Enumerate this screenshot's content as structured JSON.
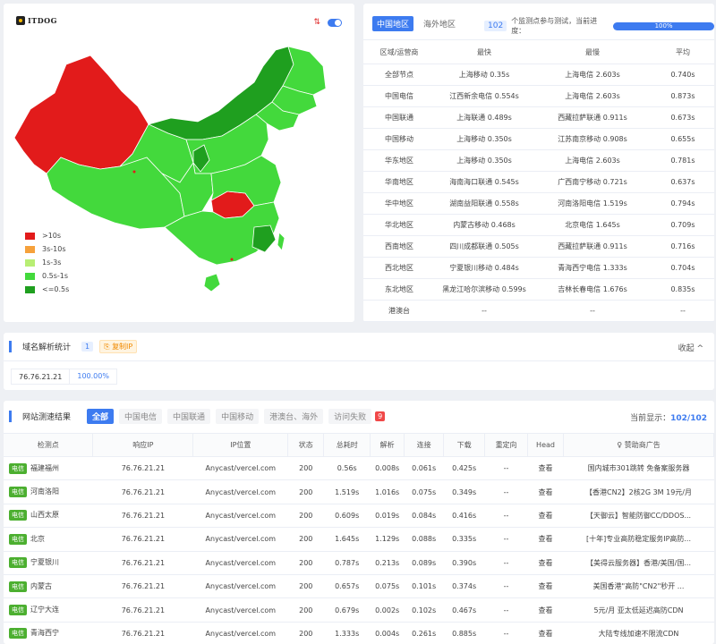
{
  "brand": {
    "logo_text": "ITDOG"
  },
  "map_legend": [
    {
      "label": ">10s",
      "color": "#e21b1b"
    },
    {
      "label": "3s-10s",
      "color": "#f6a13b"
    },
    {
      "label": "1s-3s",
      "color": "#b8ee74"
    },
    {
      "label": "0.5s-1s",
      "color": "#43d93c"
    },
    {
      "label": "<=0.5s",
      "color": "#1f9f1f"
    }
  ],
  "region_tabs": [
    {
      "label": "中国地区",
      "active": true
    },
    {
      "label": "海外地区",
      "active": false
    }
  ],
  "progress": {
    "count": "102",
    "text": "个监测点参与测试，当前进度：",
    "percent_label": "100%",
    "fraction": 1.0
  },
  "stats_table": {
    "headers": [
      "区域/运营商",
      "最快",
      "最慢",
      "平均"
    ],
    "rows": [
      [
        "全部节点",
        "上海移动 0.35s",
        "上海电信 2.603s",
        "0.740s"
      ],
      [
        "中国电信",
        "江西新余电信 0.554s",
        "上海电信 2.603s",
        "0.873s"
      ],
      [
        "中国联通",
        "上海联通 0.489s",
        "西藏拉萨联通 0.911s",
        "0.673s"
      ],
      [
        "中国移动",
        "上海移动 0.350s",
        "江苏南京移动 0.908s",
        "0.655s"
      ],
      [
        "华东地区",
        "上海移动 0.350s",
        "上海电信 2.603s",
        "0.781s"
      ],
      [
        "华南地区",
        "海南海口联通 0.545s",
        "广西南宁移动 0.721s",
        "0.637s"
      ],
      [
        "华中地区",
        "湖南益阳联通 0.558s",
        "河南洛阳电信 1.519s",
        "0.794s"
      ],
      [
        "华北地区",
        "内蒙古移动 0.468s",
        "北京电信 1.645s",
        "0.709s"
      ],
      [
        "西南地区",
        "四川成都联通 0.505s",
        "西藏拉萨联通 0.911s",
        "0.716s"
      ],
      [
        "西北地区",
        "宁夏银川移动 0.484s",
        "青海西宁电信 1.333s",
        "0.704s"
      ],
      [
        "东北地区",
        "黑龙江哈尔滨移动 0.599s",
        "吉林长春电信 1.676s",
        "0.835s"
      ],
      [
        "港澳台",
        "--",
        "--",
        "--"
      ]
    ]
  },
  "dns": {
    "title": "域名解析统计",
    "count": "1",
    "badge": "复制IP",
    "collapse_label": "收起 ^",
    "ip": "76.76.21.21",
    "percent": "100.00%"
  },
  "results": {
    "title": "网站测速结果",
    "filter_tabs": [
      {
        "label": "全部",
        "active": true
      },
      {
        "label": "中国电信",
        "active": false
      },
      {
        "label": "中国联通",
        "active": false
      },
      {
        "label": "中国移动",
        "active": false
      },
      {
        "label": "港澳台、海外",
        "active": false
      },
      {
        "label": "访问失败",
        "active": false
      }
    ],
    "fail_count": "9",
    "current_label": "当前显示：",
    "current_value": "102/102",
    "headers": [
      "检测点",
      "响应IP",
      "IP位置",
      "状态",
      "总耗时",
      "解析",
      "连接",
      "下载",
      "重定向",
      "Head",
      "赞助商广告"
    ],
    "rows": [
      {
        "isp": "电信",
        "node": "福建福州",
        "ip": "76.76.21.21",
        "loc": "Anycast/vercel.com",
        "status": "200",
        "total": "0.56s",
        "dns": "0.008s",
        "conn": "0.061s",
        "down": "0.425s",
        "redirect": "--",
        "head": "查看",
        "ad": "国内城市301跳转 免备案服务器",
        "tier": "ok"
      },
      {
        "isp": "电信",
        "node": "河南洛阳",
        "ip": "76.76.21.21",
        "loc": "Anycast/vercel.com",
        "status": "200",
        "total": "1.519s",
        "dns": "1.016s",
        "conn": "0.075s",
        "down": "0.349s",
        "redirect": "--",
        "head": "查看",
        "ad": "【香港CN2】2核2G 3M 19元/月",
        "tier": "mid"
      },
      {
        "isp": "电信",
        "node": "山西太原",
        "ip": "76.76.21.21",
        "loc": "Anycast/vercel.com",
        "status": "200",
        "total": "0.609s",
        "dns": "0.019s",
        "conn": "0.084s",
        "down": "0.416s",
        "redirect": "--",
        "head": "查看",
        "ad": "【天御云】智能防御CC/DDOS...",
        "tier": "ok"
      },
      {
        "isp": "电信",
        "node": "北京",
        "ip": "76.76.21.21",
        "loc": "Anycast/vercel.com",
        "status": "200",
        "total": "1.645s",
        "dns": "1.129s",
        "conn": "0.088s",
        "down": "0.335s",
        "redirect": "--",
        "head": "查看",
        "ad": "[十年]专业高防稳定服务IP高防...",
        "tier": "mid"
      },
      {
        "isp": "电信",
        "node": "宁夏银川",
        "ip": "76.76.21.21",
        "loc": "Anycast/vercel.com",
        "status": "200",
        "total": "0.787s",
        "dns": "0.213s",
        "conn": "0.089s",
        "down": "0.390s",
        "redirect": "--",
        "head": "查看",
        "ad": "【美得云服务器】香港/美国/国...",
        "tier": "ok"
      },
      {
        "isp": "电信",
        "node": "内蒙古",
        "ip": "76.76.21.21",
        "loc": "Anycast/vercel.com",
        "status": "200",
        "total": "0.657s",
        "dns": "0.075s",
        "conn": "0.101s",
        "down": "0.374s",
        "redirect": "--",
        "head": "查看",
        "ad": "美国香港\"高防\"CN2\"秒开 ...",
        "tier": "ok"
      },
      {
        "isp": "电信",
        "node": "辽宁大连",
        "ip": "76.76.21.21",
        "loc": "Anycast/vercel.com",
        "status": "200",
        "total": "0.679s",
        "dns": "0.002s",
        "conn": "0.102s",
        "down": "0.467s",
        "redirect": "--",
        "head": "查看",
        "ad": "5元/月 亚太低延迟高防CDN",
        "tier": "ok"
      },
      {
        "isp": "电信",
        "node": "青海西宁",
        "ip": "76.76.21.21",
        "loc": "Anycast/vercel.com",
        "status": "200",
        "total": "1.333s",
        "dns": "0.004s",
        "conn": "0.261s",
        "down": "0.885s",
        "redirect": "--",
        "head": "查看",
        "ad": "大陆专线加速不限流CDN",
        "tier": "mid"
      }
    ]
  },
  "colors": {
    "accent": "#3d7bf0",
    "ok": "#3aa82a",
    "mid": "#8fa800",
    "isp_tag": "#4caf30"
  }
}
